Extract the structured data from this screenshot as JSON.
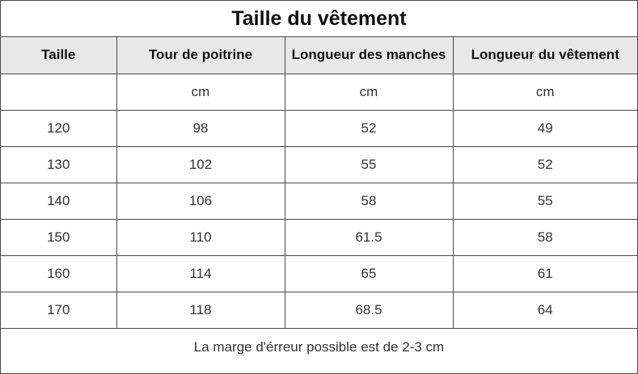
{
  "title": "Taille du vêtement",
  "headers": [
    "Taille",
    "Tour de poitrine",
    "Longueur des manches",
    "Longueur du vêtement"
  ],
  "units": [
    "",
    "cm",
    "cm",
    "cm"
  ],
  "rows": [
    [
      "120",
      "98",
      "52",
      "49"
    ],
    [
      "130",
      "102",
      "55",
      "52"
    ],
    [
      "140",
      "106",
      "58",
      "55"
    ],
    [
      "150",
      "110",
      "61.5",
      "58"
    ],
    [
      "160",
      "114",
      "65",
      "61"
    ],
    [
      "170",
      "118",
      "68.5",
      "64"
    ]
  ],
  "footer": "La marge d'érreur possible est de 2-3 cm"
}
